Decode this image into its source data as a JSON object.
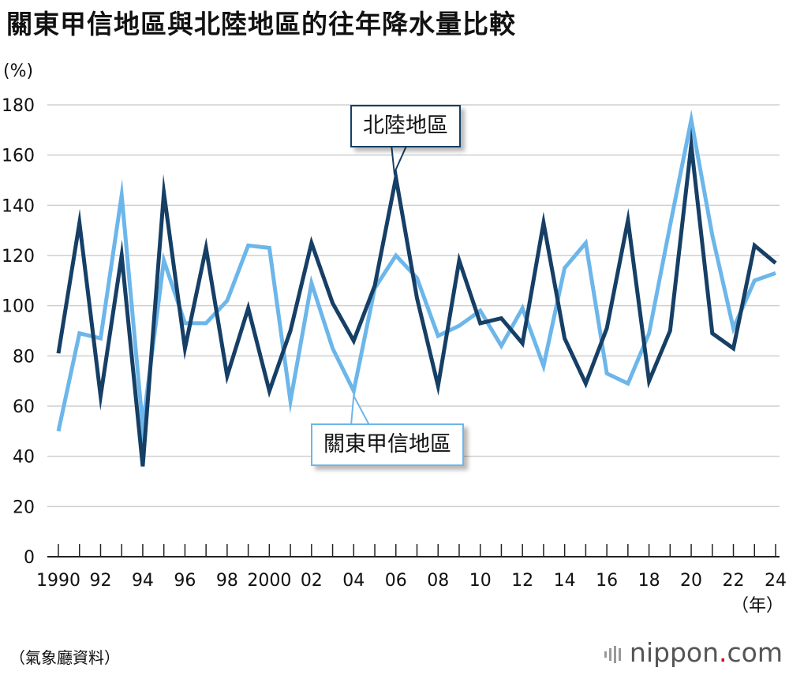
{
  "header": {
    "title": "關東甲信地區與北陸地區的往年降水量比較",
    "unit": "(%)",
    "source": "（氣象廳資料）",
    "logo_main": "nippon",
    "logo_dot": ".",
    "logo_tail": "com",
    "x_unit": "（年）"
  },
  "colors": {
    "hokuriku": "#163f66",
    "kanto": "#6cb6ea",
    "grid": "#cfcfcf",
    "axis": "#222222",
    "logo_dot": "#d0021b"
  },
  "chart_data": {
    "type": "line",
    "title": "關東甲信地區與北陸地區的往年降水量比較",
    "ylabel": "(%)",
    "xlabel": "（年）",
    "ylim": [
      0,
      180
    ],
    "yticks": [
      0,
      20,
      40,
      60,
      80,
      100,
      120,
      140,
      160,
      180
    ],
    "grid": true,
    "x": [
      1990,
      1991,
      1992,
      1993,
      1994,
      1995,
      1996,
      1997,
      1998,
      1999,
      2000,
      2001,
      2002,
      2003,
      2004,
      2005,
      2006,
      2007,
      2008,
      2009,
      2010,
      2011,
      2012,
      2013,
      2014,
      2015,
      2016,
      2017,
      2018,
      2019,
      2020,
      2021,
      2022,
      2023,
      2024
    ],
    "xtick_values": [
      1990,
      1992,
      1994,
      1996,
      1998,
      2000,
      2002,
      2004,
      2006,
      2008,
      2010,
      2012,
      2014,
      2016,
      2018,
      2020,
      2022,
      2024
    ],
    "xtick_labels": [
      "1990",
      "92",
      "94",
      "96",
      "98",
      "2000",
      "02",
      "04",
      "06",
      "08",
      "10",
      "12",
      "14",
      "16",
      "18",
      "20",
      "22",
      "24"
    ],
    "series": [
      {
        "name": "北陸地區",
        "values": [
          81,
          133,
          64,
          120,
          36,
          145,
          83,
          123,
          72,
          99,
          66,
          90,
          125,
          101,
          86,
          108,
          151,
          103,
          68,
          118,
          93,
          95,
          85,
          133,
          87,
          69,
          91,
          134,
          70,
          90,
          164,
          89,
          83,
          124,
          117
        ]
      },
      {
        "name": "關東甲信地區",
        "values": [
          50,
          89,
          87,
          144,
          52,
          118,
          93,
          93,
          102,
          124,
          123,
          62,
          109,
          83,
          66,
          107,
          120,
          111,
          88,
          92,
          98,
          84,
          99,
          76,
          115,
          125,
          73,
          69,
          89,
          132,
          174,
          128,
          91,
          110,
          113
        ]
      }
    ]
  }
}
